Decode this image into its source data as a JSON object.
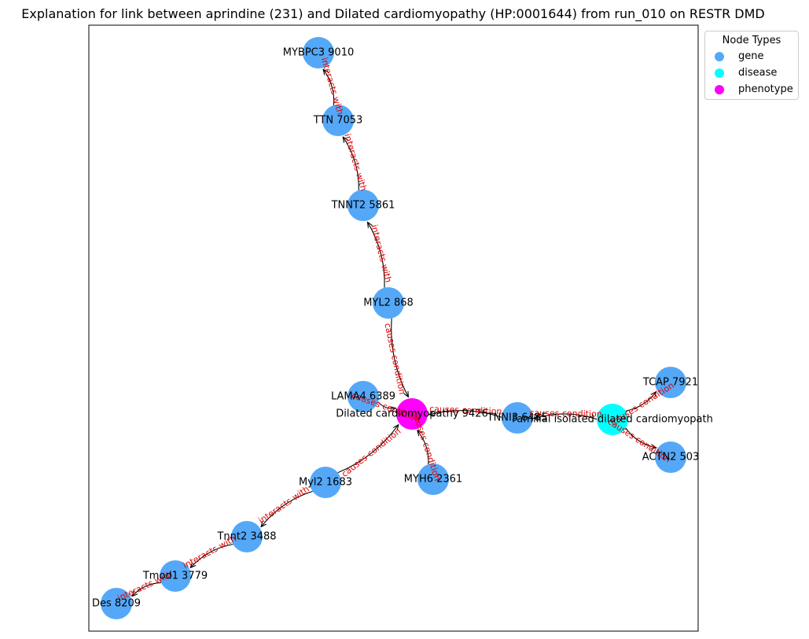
{
  "title": "Explanation for link between aprindine (231) and Dilated cardiomyopathy (HP:0001644) from run_010 on RESTR DMD",
  "legend": {
    "title": "Node Types",
    "items": [
      {
        "label": "gene",
        "color": "#55a8f8"
      },
      {
        "label": "disease",
        "color": "#00ffff"
      },
      {
        "label": "phenotype",
        "color": "#ff00ff"
      }
    ]
  },
  "colors": {
    "gene": "#55a8f8",
    "disease": "#00ffff",
    "phenotype": "#ff00ff",
    "edge_label": "#e00000"
  },
  "nodes": [
    {
      "id": "MYBPC3 9010",
      "type": "gene"
    },
    {
      "id": "TTN 7053",
      "type": "gene"
    },
    {
      "id": "TNNT2 5861",
      "type": "gene"
    },
    {
      "id": "MYL2 868",
      "type": "gene"
    },
    {
      "id": "LAMA4 6389",
      "type": "gene"
    },
    {
      "id": "Dilated cardiomyopathy 9426",
      "type": "phenotype"
    },
    {
      "id": "TNNI3 6485",
      "type": "gene"
    },
    {
      "id": "Familial isolated dilated cardiomyopath",
      "type": "disease"
    },
    {
      "id": "TCAP 7921",
      "type": "gene"
    },
    {
      "id": "ACTN2 503",
      "type": "gene"
    },
    {
      "id": "Myl2 1683",
      "type": "gene"
    },
    {
      "id": "MYH6 2361",
      "type": "gene"
    },
    {
      "id": "Tnnt2 3488",
      "type": "gene"
    },
    {
      "id": "Tmod1 3779",
      "type": "gene"
    },
    {
      "id": "Des 8209",
      "type": "gene"
    }
  ],
  "edges": [
    {
      "source": "TTN 7053",
      "target": "MYBPC3 9010",
      "label": "interacts with"
    },
    {
      "source": "TNNT2 5861",
      "target": "TTN 7053",
      "label": "interacts with"
    },
    {
      "source": "MYL2 868",
      "target": "TNNT2 5861",
      "label": "interacts with"
    },
    {
      "source": "MYL2 868",
      "target": "Dilated cardiomyopathy 9426",
      "label": "causes condition"
    },
    {
      "source": "LAMA4 6389",
      "target": "Dilated cardiomyopathy 9426",
      "label": "causes condition"
    },
    {
      "source": "TNNI3 6485",
      "target": "Dilated cardiomyopathy 9426",
      "label": "causes condition"
    },
    {
      "source": "Familial isolated dilated cardiomyopath",
      "target": "TNNI3 6485",
      "label": "causes condition"
    },
    {
      "source": "Familial isolated dilated cardiomyopath",
      "target": "TCAP 7921",
      "label": "causes condition"
    },
    {
      "source": "Familial isolated dilated cardiomyopath",
      "target": "ACTN2 503",
      "label": "causes condition"
    },
    {
      "source": "MYH6 2361",
      "target": "Dilated cardiomyopathy 9426",
      "label": "causes condition"
    },
    {
      "source": "Myl2 1683",
      "target": "Dilated cardiomyopathy 9426",
      "label": "causes condition"
    },
    {
      "source": "Myl2 1683",
      "target": "Tnnt2 3488",
      "label": "interacts with"
    },
    {
      "source": "Tnnt2 3488",
      "target": "Tmod1 3779",
      "label": "interacts with"
    },
    {
      "source": "Tmod1 3779",
      "target": "Des 8209",
      "label": "interacts with"
    }
  ]
}
